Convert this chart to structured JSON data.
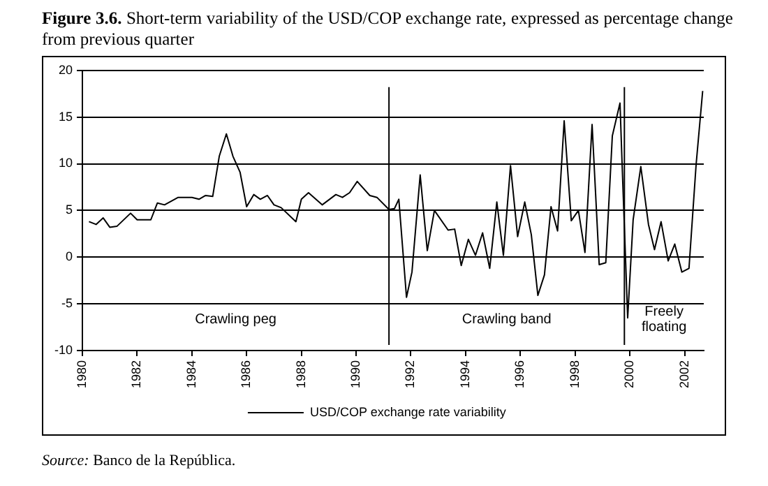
{
  "chart_data": {
    "type": "line",
    "title": "Figure 3.6. Short-term variability of the USD/COP exchange rate, expressed as percentage change from previous quarter",
    "x": [
      1980.24,
      1980.5,
      1980.76,
      1981,
      1981.26,
      1981.76,
      1982,
      1982.5,
      1982.74,
      1983,
      1983.5,
      1984,
      1984.26,
      1984.5,
      1984.76,
      1985,
      1985.26,
      1985.5,
      1985.76,
      1986,
      1986.26,
      1986.5,
      1986.76,
      1987,
      1987.26,
      1987.8,
      1988,
      1988.26,
      1988.76,
      1989.26,
      1989.5,
      1989.76,
      1990.04,
      1990.5,
      1990.76,
      1991.2,
      1991.4,
      1991.56,
      1991.84,
      1992.04,
      1992.34,
      1992.6,
      1992.86,
      1993.36,
      1993.6,
      1993.84,
      1994.1,
      1994.36,
      1994.62,
      1994.88,
      1995.14,
      1995.38,
      1995.64,
      1995.9,
      1996.16,
      1996.4,
      1996.64,
      1996.88,
      1997.12,
      1997.36,
      1997.6,
      1997.86,
      1998.12,
      1998.36,
      1998.62,
      1998.88,
      1999.12,
      1999.36,
      1999.64,
      1999.72,
      1999.92,
      2000.12,
      2000.4,
      2000.68,
      2000.9,
      2001.14,
      2001.4,
      2001.64,
      2001.9,
      2002.16,
      2002.42,
      2002.66
    ],
    "series": [
      {
        "name": "USD/COP exchange rate variability",
        "color": "#000000",
        "values": [
          3.8,
          3.5,
          4.2,
          3.2,
          3.3,
          4.7,
          4.0,
          4.0,
          5.8,
          5.6,
          6.4,
          6.4,
          6.2,
          6.6,
          6.5,
          10.8,
          13.2,
          10.8,
          9.1,
          5.4,
          6.7,
          6.2,
          6.6,
          5.6,
          5.3,
          3.8,
          6.2,
          6.9,
          5.6,
          6.7,
          6.4,
          6.9,
          8.1,
          6.6,
          6.4,
          5.1,
          5.2,
          6.2,
          -4.3,
          -1.6,
          8.8,
          0.7,
          5.0,
          2.9,
          3.0,
          -0.9,
          1.9,
          0.2,
          2.6,
          -1.2,
          5.9,
          0.2,
          9.8,
          2.2,
          5.9,
          2.4,
          -4.1,
          -1.9,
          5.4,
          2.8,
          14.6,
          3.9,
          5.0,
          0.5,
          14.2,
          -0.8,
          -0.6,
          13.0,
          16.5,
          9.7,
          -6.5,
          4.0,
          9.7,
          3.5,
          0.8,
          3.8,
          -0.4,
          1.4,
          -1.6,
          -1.2,
          9.9,
          17.8
        ]
      }
    ],
    "xlim": [
      1980,
      2002.7
    ],
    "xticks": [
      1980,
      1982,
      1984,
      1986,
      1988,
      1990,
      1992,
      1994,
      1996,
      1998,
      2000,
      2002
    ],
    "ylim": [
      -10,
      20
    ],
    "yticks": [
      -10,
      -5,
      0,
      5,
      10,
      15,
      20
    ],
    "grid": "y",
    "legend": "bottom",
    "marker": "none",
    "line_style": "solid",
    "ref_lines": [
      {
        "axis": "x",
        "value": 1991.2,
        "color": "#000000"
      },
      {
        "axis": "x",
        "value": 1999.8,
        "color": "#000000"
      }
    ],
    "annotations": [
      "Crawling peg",
      "Crawling band",
      "Freely floating",
      "Source: Banco de la República."
    ]
  }
}
